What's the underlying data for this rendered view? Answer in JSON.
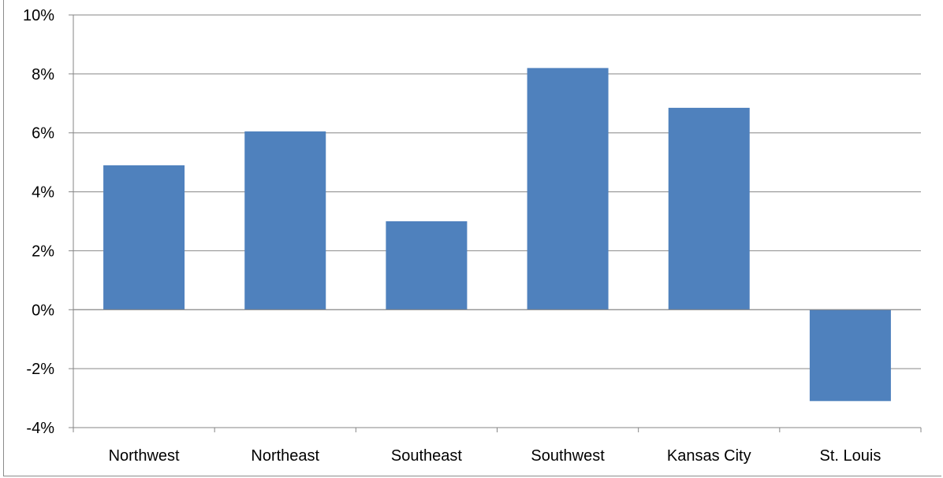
{
  "chart_data": {
    "type": "bar",
    "title": "",
    "xlabel": "",
    "ylabel": "",
    "categories": [
      "Northwest",
      "Northeast",
      "Southeast",
      "Southwest",
      "Kansas City",
      "St. Louis"
    ],
    "values": [
      4.9,
      6.05,
      3.0,
      8.2,
      6.85,
      -3.1
    ],
    "ylim": [
      -4,
      10
    ],
    "y_ticks": [
      10,
      8,
      6,
      4,
      2,
      0,
      -2,
      -4
    ],
    "y_tick_labels": [
      "10%",
      "8%",
      "6%",
      "4%",
      "2%",
      "0%",
      "-2%",
      "-4%"
    ],
    "grid": true,
    "legend": "none",
    "colors": {
      "bar": "#4f81bd",
      "grid": "#868686",
      "axis": "#868686"
    }
  }
}
